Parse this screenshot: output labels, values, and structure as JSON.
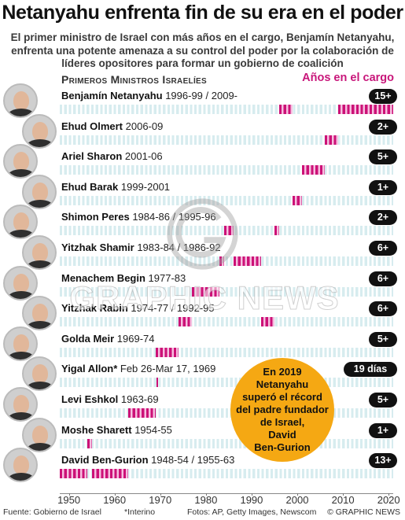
{
  "title": "Netanyahu enfrenta fin de su era en el poder",
  "subtitle": "El primer ministro de Israel con más años en el cargo, Benjamín Netanyahu, enfrenta una potente amenaza a su control del poder por la colaboración de líderes opositores para formar un gobierno de coalición",
  "section_label": "Primeros Ministros Israelíes",
  "legend_label": "Años en el cargo",
  "callout": [
    "En 2019",
    "Netanyahu",
    "superó el récord",
    "del padre fundador",
    "de Israel,",
    "David",
    "Ben-Gurion"
  ],
  "footer": {
    "source": "Fuente: Gobierno de Israel",
    "note": "*Interino",
    "photos": "Fotos: AP, Getty Images, Newscom",
    "credit": "© GRAPHIC NEWS"
  },
  "watermark": "GRAPHIC NEWS",
  "colors": {
    "term": "#cc1177",
    "band": "#d7ecef",
    "accent": "#c8167a",
    "callout": "#f5a813",
    "badge": "#111111"
  },
  "chart_data": {
    "type": "bar",
    "title": "Netanyahu enfrenta fin de su era en el poder",
    "xlabel": "",
    "ylabel": "",
    "xlim": [
      1948,
      2021
    ],
    "x_ticks": [
      "1950",
      "1960",
      "1970",
      "1980",
      "1990",
      "2000",
      "2010",
      "2020"
    ],
    "rows": [
      {
        "name": "Benjamín Netanyahu",
        "years_text": "1996-99 / 2009-",
        "badge": "15+",
        "terms": [
          [
            1996,
            1999
          ],
          [
            2009,
            2021
          ]
        ]
      },
      {
        "name": "Ehud Olmert",
        "years_text": "2006-09",
        "badge": "2+",
        "terms": [
          [
            2006,
            2009
          ]
        ]
      },
      {
        "name": "Ariel Sharon",
        "years_text": "2001-06",
        "badge": "5+",
        "terms": [
          [
            2001,
            2006
          ]
        ]
      },
      {
        "name": "Ehud Barak",
        "years_text": "1999-2001",
        "badge": "1+",
        "terms": [
          [
            1999,
            2001
          ]
        ]
      },
      {
        "name": "Shimon Peres",
        "years_text": "1984-86 / 1995-96",
        "badge": "2+",
        "terms": [
          [
            1984,
            1986
          ],
          [
            1995,
            1996
          ]
        ]
      },
      {
        "name": "Yitzhak Shamir",
        "years_text": "1983-84 / 1986-92",
        "badge": "6+",
        "terms": [
          [
            1983,
            1984
          ],
          [
            1986,
            1992
          ]
        ]
      },
      {
        "name": "Menachem Begin",
        "years_text": "1977-83",
        "badge": "6+",
        "terms": [
          [
            1977,
            1983
          ]
        ]
      },
      {
        "name": "Yitzhak Rabin",
        "years_text": "1974-77 / 1992-95",
        "badge": "6+",
        "terms": [
          [
            1974,
            1977
          ],
          [
            1992,
            1995
          ]
        ]
      },
      {
        "name": "Golda Meir",
        "years_text": "1969-74",
        "badge": "5+",
        "terms": [
          [
            1969,
            1974
          ]
        ]
      },
      {
        "name": "Yigal Allon*",
        "years_text": "Feb 26-Mar 17, 1969",
        "badge": "19 días",
        "terms": [
          [
            1969.15,
            1969.21
          ]
        ]
      },
      {
        "name": "Levi Eshkol",
        "years_text": "1963-69",
        "badge": "5+",
        "terms": [
          [
            1963,
            1969
          ]
        ]
      },
      {
        "name": "Moshe Sharett",
        "years_text": "1954-55",
        "badge": "1+",
        "terms": [
          [
            1954,
            1955
          ]
        ]
      },
      {
        "name": "David Ben-Gurion",
        "years_text": "1948-54 / 1955-63",
        "badge": "13+",
        "terms": [
          [
            1948,
            1954
          ],
          [
            1955,
            1963
          ]
        ]
      }
    ]
  }
}
